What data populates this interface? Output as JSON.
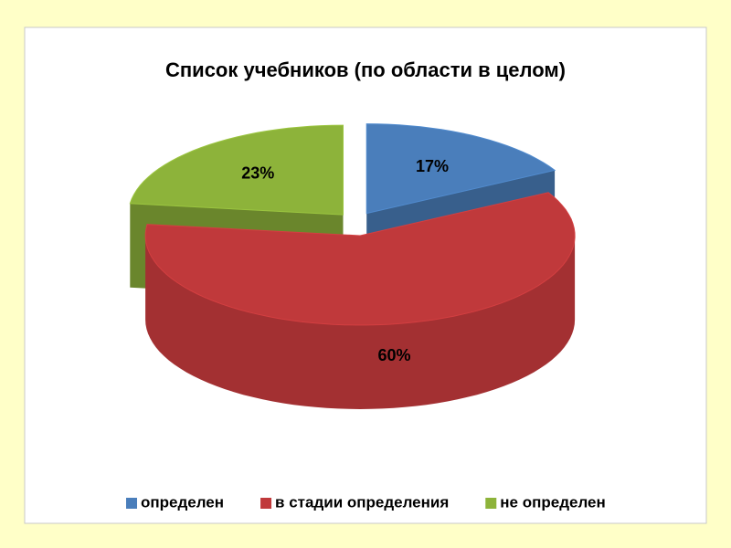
{
  "chart_data": {
    "type": "pie3d",
    "title": "Список учебников (по области в целом)",
    "categories": [
      "определен",
      "в стадии определения",
      "не определен"
    ],
    "values": [
      17,
      60,
      23
    ],
    "value_labels": [
      "17%",
      "60%",
      "23%"
    ],
    "colors": [
      "#4a7ebb",
      "#c0393b",
      "#8db33a"
    ],
    "legend": "bottom"
  }
}
